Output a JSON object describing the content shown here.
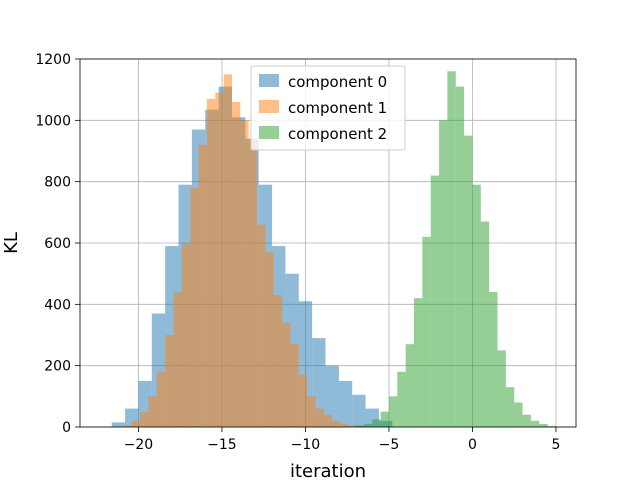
{
  "chart_data": {
    "type": "histogram",
    "title": "",
    "xlabel": "iteration",
    "ylabel": "KL",
    "xlim": [
      -23.5,
      6.2
    ],
    "ylim": [
      0,
      1200
    ],
    "xticks": [
      -20,
      -15,
      -10,
      -5,
      0,
      5
    ],
    "yticks": [
      0,
      200,
      400,
      600,
      800,
      1000,
      1200
    ],
    "grid": true,
    "legend_position": "upper center",
    "series": [
      {
        "name": "component 0",
        "color": "#1f77b4",
        "opacity": 0.5,
        "bin_edges": [
          -21.6,
          -20.8,
          -20.0,
          -19.2,
          -18.4,
          -17.6,
          -16.8,
          -16.0,
          -15.2,
          -14.4,
          -13.6,
          -12.8,
          -12.0,
          -11.2,
          -10.4,
          -9.6,
          -8.8,
          -8.0,
          -7.2,
          -6.4,
          -5.6,
          -4.8
        ],
        "counts": [
          15,
          60,
          150,
          370,
          590,
          790,
          970,
          1035,
          1110,
          1010,
          940,
          790,
          590,
          500,
          410,
          290,
          200,
          150,
          105,
          60,
          20
        ]
      },
      {
        "name": "component 1",
        "color": "#ff7f0e",
        "opacity": 0.5,
        "bin_edges": [
          -20.9,
          -20.4,
          -19.9,
          -19.4,
          -18.9,
          -18.4,
          -17.9,
          -17.4,
          -16.9,
          -16.4,
          -15.9,
          -15.4,
          -14.9,
          -14.4,
          -13.9,
          -13.4,
          -12.9,
          -12.4,
          -11.9,
          -11.4,
          -10.9,
          -10.4,
          -9.9,
          -9.4,
          -8.9,
          -8.4,
          -7.9,
          -7.4,
          -6.9,
          -6.4
        ],
        "counts": [
          5,
          20,
          50,
          100,
          180,
          300,
          440,
          600,
          780,
          920,
          1070,
          1090,
          1150,
          1060,
          1000,
          940,
          660,
          570,
          430,
          340,
          270,
          170,
          100,
          60,
          40,
          20,
          10,
          5,
          2
        ]
      },
      {
        "name": "component 2",
        "color": "#2ca02c",
        "opacity": 0.5,
        "bin_edges": [
          -7.0,
          -6.5,
          -6.0,
          -5.5,
          -5.0,
          -4.5,
          -4.0,
          -3.5,
          -3.0,
          -2.5,
          -2.0,
          -1.5,
          -1.0,
          -0.5,
          0.0,
          0.5,
          1.0,
          1.5,
          2.0,
          2.5,
          3.0,
          3.5,
          4.0,
          4.5,
          5.0
        ],
        "counts": [
          5,
          10,
          25,
          50,
          100,
          180,
          270,
          420,
          620,
          820,
          1000,
          1160,
          1110,
          950,
          790,
          670,
          440,
          250,
          130,
          80,
          40,
          20,
          10,
          3
        ]
      }
    ]
  }
}
